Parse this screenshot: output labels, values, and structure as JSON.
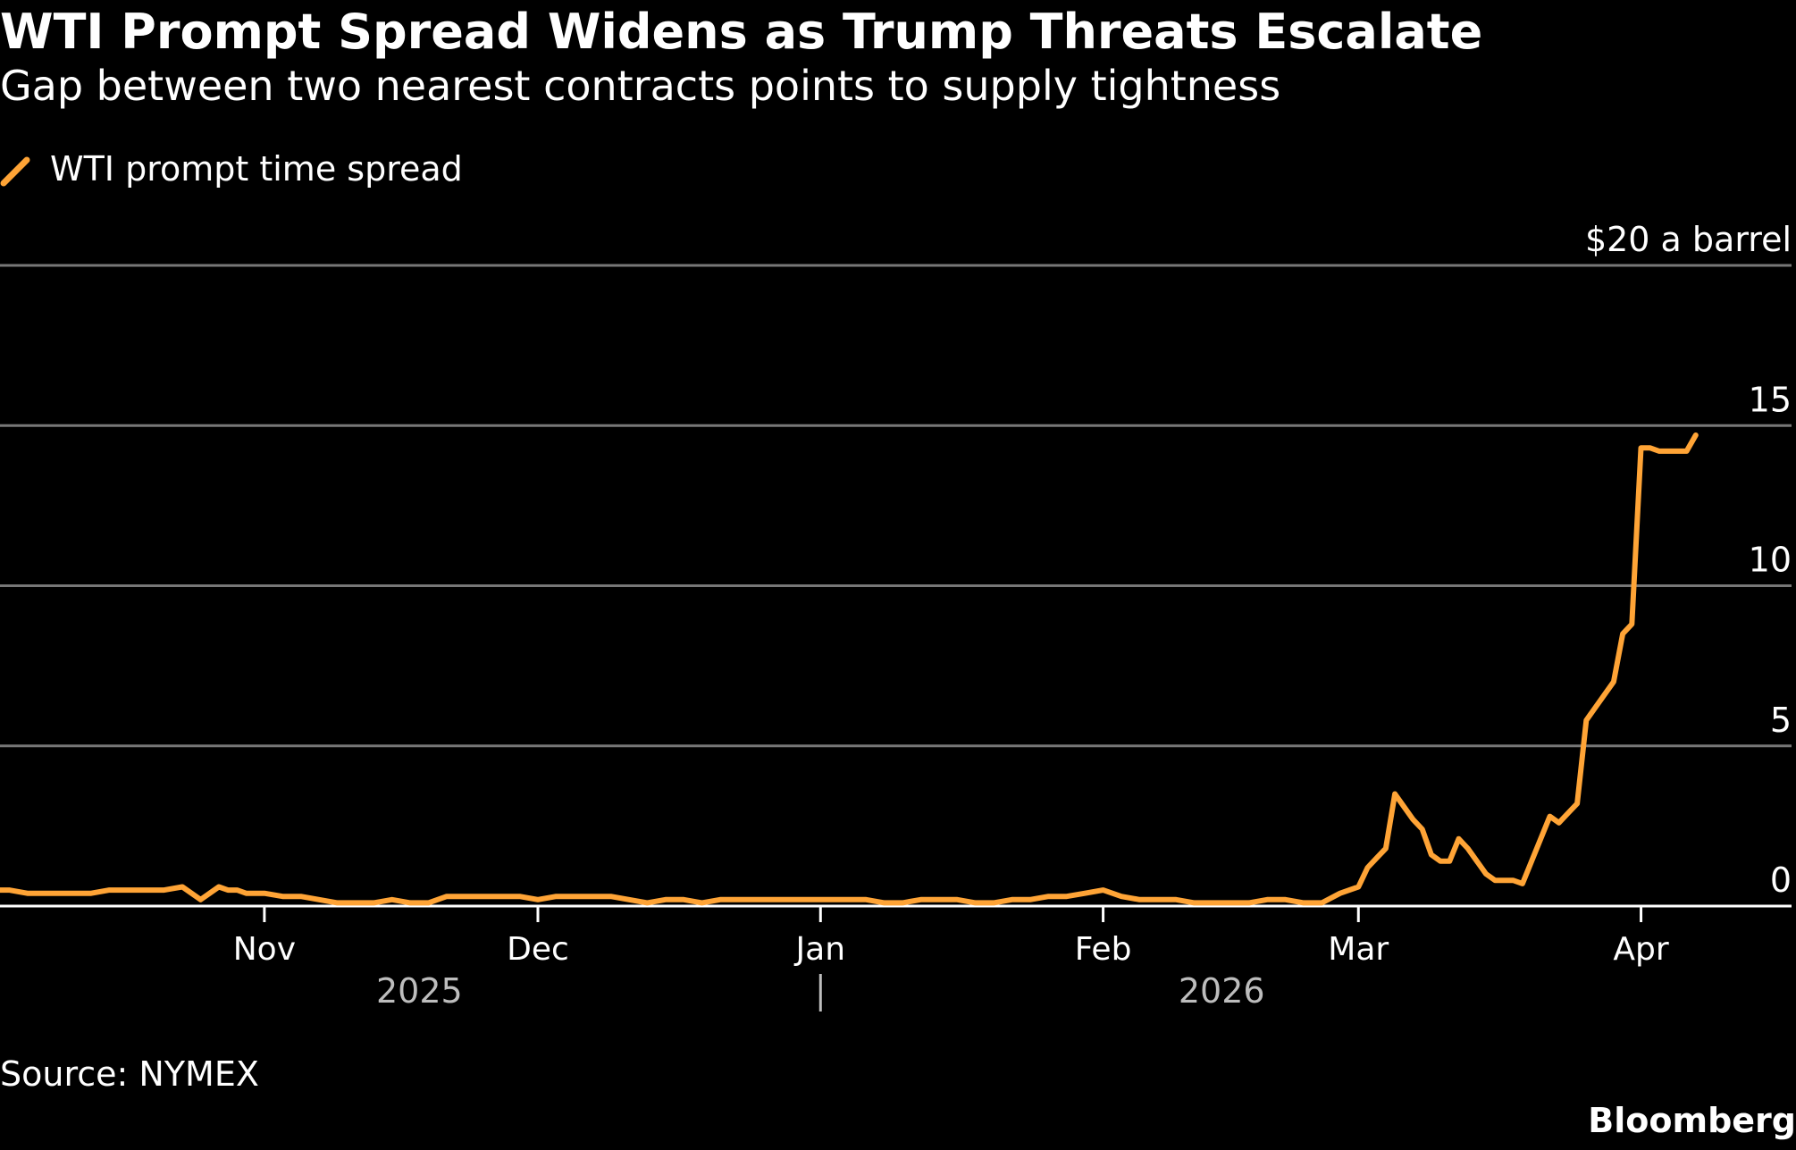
{
  "header": {
    "title": "WTI Prompt Spread Widens as Trump Threats Escalate",
    "subtitle": "Gap between two nearest contracts points to supply tightness"
  },
  "legend": {
    "label": "WTI prompt time spread"
  },
  "footer": {
    "source": "Source: NYMEX",
    "logo": "Bloomberg"
  },
  "colors": {
    "background": "#000000",
    "series": "#FFA436",
    "grid": "#777777",
    "baseline": "#ffffff",
    "text": "#ffffff",
    "year_label": "#BDBDBD"
  },
  "chart_data": {
    "type": "line",
    "ylabel": "$20 a barrel",
    "ylim": [
      0,
      20
    ],
    "yticks": [
      {
        "value": 20,
        "label": "$20 a barrel"
      },
      {
        "value": 15,
        "label": "15"
      },
      {
        "value": 10,
        "label": "10"
      },
      {
        "value": 5,
        "label": "5"
      },
      {
        "value": 0,
        "label": "0"
      }
    ],
    "xlim": [
      "2025-10-03",
      "2026-04-18"
    ],
    "month_ticks": [
      {
        "date": "2025-11-01",
        "label": "Nov"
      },
      {
        "date": "2025-12-01",
        "label": "Dec"
      },
      {
        "date": "2026-01-01",
        "label": "Jan"
      },
      {
        "date": "2026-02-01",
        "label": "Feb"
      },
      {
        "date": "2026-03-01",
        "label": "Mar"
      },
      {
        "date": "2026-04-01",
        "label": "Apr"
      }
    ],
    "year_labels": [
      {
        "date": "2025-11-18",
        "label": "2025"
      },
      {
        "date": "2026-02-14",
        "label": "2026"
      }
    ],
    "year_divider": "2026-01-01",
    "grid": true,
    "legend_position": "top-left",
    "series": [
      {
        "name": "WTI prompt time spread",
        "x": [
          "2025-10-03",
          "2025-10-04",
          "2025-10-06",
          "2025-10-08",
          "2025-10-10",
          "2025-10-13",
          "2025-10-15",
          "2025-10-17",
          "2025-10-19",
          "2025-10-21",
          "2025-10-23",
          "2025-10-25",
          "2025-10-27",
          "2025-10-28",
          "2025-10-29",
          "2025-10-30",
          "2025-11-01",
          "2025-11-03",
          "2025-11-05",
          "2025-11-07",
          "2025-11-09",
          "2025-11-11",
          "2025-11-13",
          "2025-11-15",
          "2025-11-17",
          "2025-11-19",
          "2025-11-21",
          "2025-11-23",
          "2025-11-25",
          "2025-11-27",
          "2025-11-29",
          "2025-12-01",
          "2025-12-03",
          "2025-12-05",
          "2025-12-07",
          "2025-12-09",
          "2025-12-11",
          "2025-12-13",
          "2025-12-15",
          "2025-12-17",
          "2025-12-19",
          "2025-12-21",
          "2025-12-23",
          "2025-12-25",
          "2025-12-27",
          "2025-12-29",
          "2025-12-31",
          "2026-01-02",
          "2026-01-04",
          "2026-01-06",
          "2026-01-08",
          "2026-01-10",
          "2026-01-12",
          "2026-01-14",
          "2026-01-16",
          "2026-01-18",
          "2026-01-20",
          "2026-01-22",
          "2026-01-24",
          "2026-01-26",
          "2026-01-28",
          "2026-01-30",
          "2026-02-01",
          "2026-02-03",
          "2026-02-05",
          "2026-02-07",
          "2026-02-09",
          "2026-02-11",
          "2026-02-13",
          "2026-02-15",
          "2026-02-17",
          "2026-02-19",
          "2026-02-21",
          "2026-02-23",
          "2026-02-25",
          "2026-02-27",
          "2026-03-01",
          "2026-03-02",
          "2026-03-03",
          "2026-03-04",
          "2026-03-05",
          "2026-03-06",
          "2026-03-07",
          "2026-03-08",
          "2026-03-09",
          "2026-03-10",
          "2026-03-11",
          "2026-03-12",
          "2026-03-13",
          "2026-03-15",
          "2026-03-16",
          "2026-03-17",
          "2026-03-18",
          "2026-03-19",
          "2026-03-20",
          "2026-03-22",
          "2026-03-23",
          "2026-03-24",
          "2026-03-25",
          "2026-03-26",
          "2026-03-27",
          "2026-03-29",
          "2026-03-30",
          "2026-03-31",
          "2026-04-01",
          "2026-04-02",
          "2026-04-03",
          "2026-04-05",
          "2026-04-06",
          "2026-04-07"
        ],
        "values": [
          0.5,
          0.5,
          0.4,
          0.4,
          0.4,
          0.4,
          0.5,
          0.5,
          0.5,
          0.5,
          0.6,
          0.2,
          0.6,
          0.5,
          0.5,
          0.4,
          0.4,
          0.3,
          0.3,
          0.2,
          0.1,
          0.1,
          0.1,
          0.2,
          0.1,
          0.1,
          0.3,
          0.3,
          0.3,
          0.3,
          0.3,
          0.2,
          0.3,
          0.3,
          0.3,
          0.3,
          0.2,
          0.1,
          0.2,
          0.2,
          0.1,
          0.2,
          0.2,
          0.2,
          0.2,
          0.2,
          0.2,
          0.2,
          0.2,
          0.2,
          0.1,
          0.1,
          0.2,
          0.2,
          0.2,
          0.1,
          0.1,
          0.2,
          0.2,
          0.3,
          0.3,
          0.4,
          0.5,
          0.3,
          0.2,
          0.2,
          0.2,
          0.1,
          0.1,
          0.1,
          0.1,
          0.2,
          0.2,
          0.1,
          0.1,
          0.4,
          0.6,
          1.2,
          1.5,
          1.8,
          3.5,
          3.1,
          2.7,
          2.4,
          1.6,
          1.4,
          1.4,
          2.1,
          1.8,
          1.0,
          0.8,
          0.8,
          0.8,
          0.7,
          1.4,
          2.8,
          2.6,
          2.9,
          3.2,
          5.8,
          6.2,
          7.0,
          8.5,
          8.8,
          14.3,
          14.3,
          14.2,
          14.2,
          14.2,
          14.7
        ]
      }
    ]
  }
}
